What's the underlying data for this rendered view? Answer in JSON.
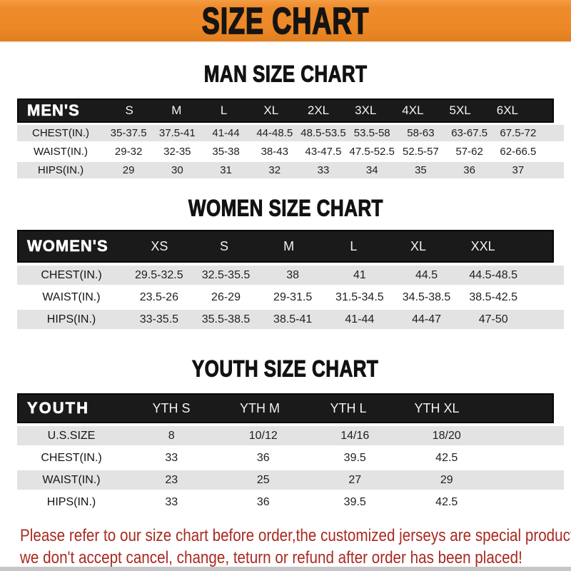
{
  "banner": {
    "title": "SIZE CHART"
  },
  "sections": [
    {
      "heading": "MAN SIZE CHART",
      "header_label": "MEN'S",
      "columns": [
        "S",
        "M",
        "L",
        "XL",
        "2XL",
        "3XL",
        "4XL",
        "5XL",
        "6XL"
      ],
      "rows": [
        {
          "label": "CHEST(IN.)",
          "values": [
            "35-37.5",
            "37.5-41",
            "41-44",
            "44-48.5",
            "48.5-53.5",
            "53.5-58",
            "58-63",
            "63-67.5",
            "67.5-72"
          ]
        },
        {
          "label": "WAIST(IN.)",
          "values": [
            "29-32",
            "32-35",
            "35-38",
            "38-43",
            "43-47.5",
            "47.5-52.5",
            "52.5-57",
            "57-62",
            "62-66.5"
          ]
        },
        {
          "label": "HIPS(IN.)",
          "values": [
            "29",
            "30",
            "31",
            "32",
            "33",
            "34",
            "35",
            "36",
            "37"
          ]
        }
      ]
    },
    {
      "heading": "WOMEN SIZE CHART",
      "header_label": "WOMEN'S",
      "columns": [
        "XS",
        "S",
        "M",
        "L",
        "XL",
        "XXL"
      ],
      "rows": [
        {
          "label": "CHEST(IN.)",
          "values": [
            "29.5-32.5",
            "32.5-35.5",
            "38",
            "41",
            "44.5",
            "44.5-48.5"
          ]
        },
        {
          "label": "WAIST(IN.)",
          "values": [
            "23.5-26",
            "26-29",
            "29-31.5",
            "31.5-34.5",
            "34.5-38.5",
            "38.5-42.5"
          ]
        },
        {
          "label": "HIPS(IN.)",
          "values": [
            "33-35.5",
            "35.5-38.5",
            "38.5-41",
            "41-44",
            "44-47",
            "47-50"
          ]
        }
      ]
    },
    {
      "heading": "YOUTH SIZE CHART",
      "header_label": "YOUTH",
      "columns": [
        "YTH S",
        "YTH M",
        "YTH L",
        "YTH XL"
      ],
      "rows": [
        {
          "label": "U.S.SIZE",
          "values": [
            "8",
            "10/12",
            "14/16",
            "18/20"
          ]
        },
        {
          "label": "CHEST(IN.)",
          "values": [
            "33",
            "36",
            "39.5",
            "42.5"
          ]
        },
        {
          "label": "WAIST(IN.)",
          "values": [
            "23",
            "25",
            "27",
            "29"
          ]
        },
        {
          "label": "HIPS(IN.)",
          "values": [
            "33",
            "36",
            "39.5",
            "42.5"
          ]
        }
      ]
    }
  ],
  "footer": {
    "line1": "Please refer to our size chart before order,the customized jerseys are special products,",
    "line2": "we don't accept cancel, change, teturn or refund after order has been placed!"
  },
  "colors": {
    "banner_orange": "#EC8826",
    "band_black": "#1A1A1A",
    "row_gray": "#E3E3E3",
    "footer_red": "#A92A21"
  }
}
